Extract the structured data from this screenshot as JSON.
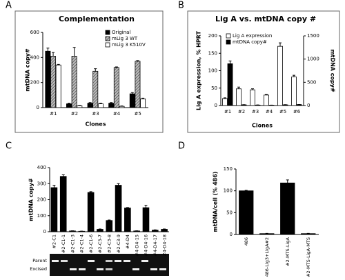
{
  "chart_data": [
    {
      "type": "bar",
      "panel": "A",
      "title": "Complementation",
      "xlabel": "Clones",
      "ylabel": "mtDNA copy#",
      "categories": [
        "#1",
        "#2",
        "#3",
        "#4",
        "#5"
      ],
      "series": [
        {
          "name": "Original",
          "color": "#000000",
          "values": [
            450,
            30,
            35,
            35,
            110
          ],
          "errors": [
            25,
            5,
            5,
            5,
            10
          ]
        },
        {
          "name": "mLig 3 WT",
          "color": "#888888",
          "hatched": true,
          "values": [
            410,
            410,
            290,
            320,
            370
          ],
          "errors": [
            30,
            70,
            20,
            5,
            5
          ]
        },
        {
          "name": "mLig 3 K510V",
          "color": "#ffffff",
          "values": [
            340,
            15,
            30,
            10,
            70
          ],
          "errors": [
            5,
            3,
            5,
            3,
            5
          ]
        }
      ],
      "ylim": [
        0,
        600
      ],
      "yticks": [
        0,
        200,
        400,
        600
      ],
      "legend": "upper right"
    },
    {
      "type": "bar",
      "panel": "B",
      "title": "Lig A vs. mtDNA copy #",
      "xlabel": "Clones",
      "ylabel": "Lig A expression, % HPRT",
      "y2label": "mtDNA copy#",
      "categories": [
        "#1",
        "#2",
        "#3",
        "#4",
        "#5",
        "#6"
      ],
      "series": [
        {
          "name": "Lig A expression",
          "color": "#ffffff",
          "values": [
            20,
            48,
            45,
            30,
            170,
            82
          ],
          "errors": [
            2,
            5,
            3,
            2,
            10,
            5
          ]
        },
        {
          "name": "mtDNA copy#",
          "color": "#000000",
          "axis": "y2",
          "values": [
            900,
            15,
            10,
            8,
            15,
            20
          ],
          "errors": [
            60,
            3,
            3,
            2,
            3,
            3
          ]
        }
      ],
      "ylim": [
        0,
        200
      ],
      "yticks": [
        0,
        50,
        100,
        150,
        200
      ],
      "y2lim": [
        0,
        1500
      ],
      "y2ticks": [
        0,
        500,
        1000,
        1500
      ],
      "legend": "upper left"
    },
    {
      "type": "bar",
      "panel": "C",
      "ylabel": "mtDNA copy#",
      "categories": [
        "#2-C1",
        "#2-C1-1",
        "#2-C1-3",
        "#2-C1-4",
        "#2-C1-6",
        "#2-C3-7",
        "#2-C3-8",
        "#2-C3-9",
        "#4-D4",
        "#4-D4-15",
        "#4-D4-16",
        "#4-D4-17",
        "#4-D4-18"
      ],
      "series": [
        {
          "color": "#000000",
          "values": [
            275,
            345,
            5,
            3,
            245,
            15,
            70,
            290,
            148,
            5,
            150,
            10,
            15
          ],
          "errors": [
            15,
            10,
            1,
            1,
            5,
            2,
            3,
            10,
            3,
            1,
            15,
            2,
            2
          ]
        }
      ],
      "ylim": [
        0,
        400
      ],
      "yticks": [
        0,
        100,
        200,
        300,
        400
      ],
      "gel_labels": [
        "Parent",
        "Excised"
      ]
    },
    {
      "type": "bar",
      "panel": "D",
      "ylabel": "mtDNA/cell (% 486)",
      "categories": [
        "486",
        "486-Lig3+LigA#2",
        "#2-MTS-LigA",
        "#2-MTS-LigA-MTS"
      ],
      "series": [
        {
          "color": "#000000",
          "values": [
            100,
            2,
            118,
            2
          ],
          "errors": [
            1,
            0.5,
            7,
            0.5
          ]
        }
      ],
      "ylim": [
        0,
        150
      ],
      "yticks": [
        0,
        50,
        100,
        150
      ]
    }
  ]
}
